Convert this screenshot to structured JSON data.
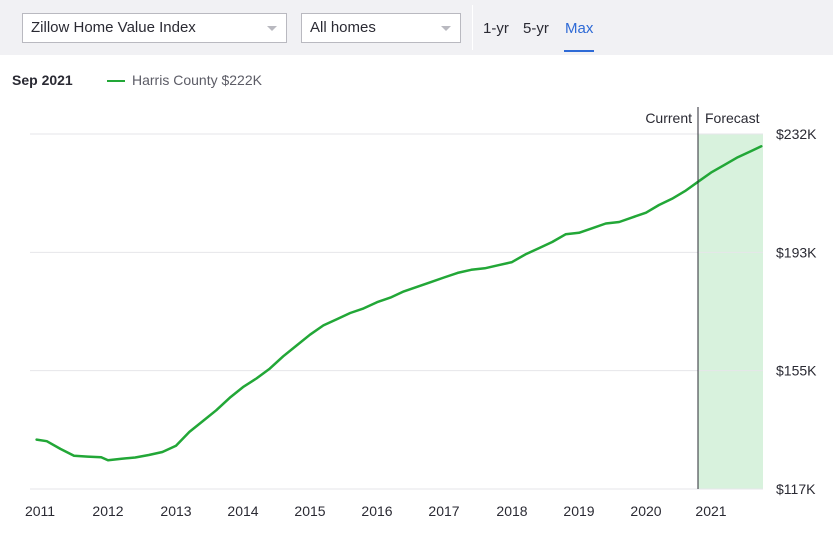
{
  "toolbar": {
    "index_select": "Zillow Home Value Index",
    "home_type_select": "All homes",
    "ranges": [
      "1-yr",
      "5-yr",
      "Max"
    ],
    "active_range": "Max"
  },
  "legend": {
    "date": "Sep 2021",
    "series_label": "Harris County $222K"
  },
  "colors": {
    "line": "#22a737",
    "forecast_fill": "#d8f2dd",
    "accent": "#2e6ad6"
  },
  "chart_data": {
    "type": "line",
    "title": "",
    "xlabel": "",
    "ylabel": "",
    "x_ticks": [
      "2011",
      "2012",
      "2013",
      "2014",
      "2015",
      "2016",
      "2017",
      "2018",
      "2019",
      "2020",
      "2021"
    ],
    "y_ticks": [
      "$117K",
      "$155K",
      "$193K",
      "$232K"
    ],
    "ylim": [
      117,
      232
    ],
    "y_unit": "$K",
    "grid": true,
    "current_label": "Current",
    "forecast_label": "Forecast",
    "current_x": 2020.8,
    "series": [
      {
        "name": "Harris County",
        "x": [
          2010.95,
          2011.1,
          2011.3,
          2011.5,
          2011.7,
          2011.9,
          2012.0,
          2012.2,
          2012.4,
          2012.6,
          2012.8,
          2013.0,
          2013.2,
          2013.4,
          2013.6,
          2013.8,
          2014.0,
          2014.2,
          2014.4,
          2014.6,
          2014.8,
          2015.0,
          2015.2,
          2015.4,
          2015.6,
          2015.8,
          2016.0,
          2016.2,
          2016.4,
          2016.6,
          2016.8,
          2017.0,
          2017.2,
          2017.4,
          2017.6,
          2017.8,
          2018.0,
          2018.2,
          2018.4,
          2018.6,
          2018.8,
          2019.0,
          2019.2,
          2019.4,
          2019.6,
          2019.8,
          2020.0,
          2020.2,
          2020.4,
          2020.6,
          2020.8,
          2021.0,
          2021.2,
          2021.4,
          2021.6,
          2021.75
        ],
        "values": [
          133,
          132.5,
          130,
          127.8,
          127.5,
          127.3,
          126.3,
          126.8,
          127.2,
          128,
          129,
          131,
          135.5,
          139,
          142.5,
          146.5,
          150,
          152.8,
          156,
          160,
          163.5,
          167,
          170,
          172,
          174,
          175.5,
          177.5,
          179,
          181,
          182.5,
          184,
          185.5,
          187,
          188,
          188.5,
          189.5,
          190.5,
          193,
          195,
          197,
          199.5,
          200,
          201.5,
          203,
          203.5,
          205,
          206.5,
          209,
          211,
          213.5,
          216.5,
          219.5,
          222,
          224.5,
          226.5,
          228
        ]
      }
    ]
  }
}
